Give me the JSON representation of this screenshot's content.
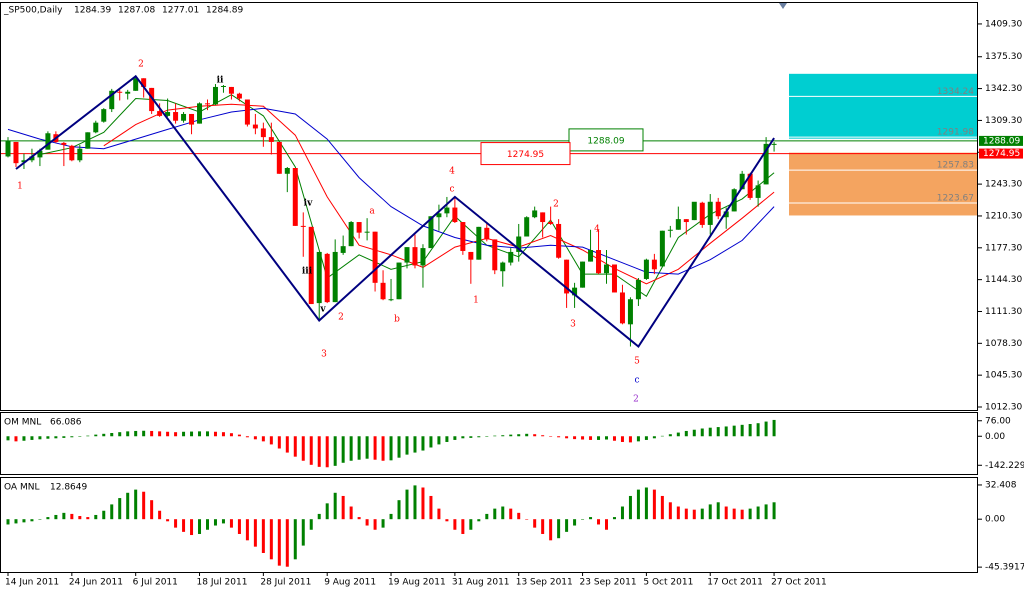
{
  "chart_data": [
    {
      "type": "candlestick",
      "title": "_SP500,Daily",
      "readout": [
        1284.39,
        1287.08,
        1277.01,
        1284.89
      ],
      "categories": [
        "14 Jun 2011",
        null,
        null,
        null,
        null,
        null,
        null,
        null,
        "24 Jun 2011",
        null,
        null,
        null,
        null,
        null,
        null,
        null,
        "6 Jul 2011",
        null,
        null,
        null,
        null,
        null,
        null,
        null,
        "18 Jul 2011",
        null,
        null,
        null,
        null,
        null,
        null,
        null,
        "28 Jul 2011",
        null,
        null,
        null,
        null,
        null,
        null,
        null,
        "9 Aug 2011",
        null,
        null,
        null,
        null,
        null,
        null,
        null,
        "19 Aug 2011",
        null,
        null,
        null,
        null,
        null,
        null,
        null,
        "31 Aug 2011",
        null,
        null,
        null,
        null,
        null,
        null,
        null,
        "13 Sep 2011",
        null,
        null,
        null,
        null,
        null,
        null,
        null,
        "23 Sep 2011",
        null,
        null,
        null,
        null,
        null,
        null,
        null,
        "5 Oct 2011",
        null,
        null,
        null,
        null,
        null,
        null,
        null,
        "17 Oct 2011",
        null,
        null,
        null,
        null,
        null,
        null,
        null,
        "27 Oct 2011"
      ],
      "ohlc": [
        [
          1272,
          1292,
          1271,
          1288
        ],
        [
          1287,
          1287,
          1261,
          1265
        ],
        [
          1266,
          1275,
          1259,
          1268
        ],
        [
          1268,
          1280,
          1266,
          1272
        ],
        [
          1271,
          1280,
          1262,
          1278
        ],
        [
          1279,
          1298,
          1279,
          1296
        ],
        [
          1295,
          1298,
          1286,
          1287
        ],
        [
          1286,
          1287,
          1262,
          1284
        ],
        [
          1283,
          1284,
          1267,
          1268
        ],
        [
          1268,
          1284,
          1266,
          1280
        ],
        [
          1280,
          1297,
          1280,
          1297
        ],
        [
          1297,
          1309,
          1296,
          1307
        ],
        [
          1308,
          1322,
          1307,
          1321
        ],
        [
          1321,
          1342,
          1318,
          1340
        ],
        [
          1339,
          1341,
          1330,
          1338
        ],
        [
          1337,
          1341,
          1331,
          1339
        ],
        [
          1340,
          1356,
          1340,
          1353
        ],
        [
          1353,
          1353,
          1333,
          1344
        ],
        [
          1343,
          1343,
          1316,
          1319
        ],
        [
          1319,
          1327,
          1313,
          1314
        ],
        [
          1314,
          1332,
          1313,
          1318
        ],
        [
          1318,
          1327,
          1306,
          1309
        ],
        [
          1309,
          1318,
          1307,
          1316
        ],
        [
          1316,
          1316,
          1295,
          1305
        ],
        [
          1306,
          1328,
          1306,
          1327
        ],
        [
          1327,
          1331,
          1320,
          1326
        ],
        [
          1326,
          1347,
          1325,
          1344
        ],
        [
          1344,
          1346,
          1338,
          1345
        ],
        [
          1344,
          1344,
          1331,
          1337
        ],
        [
          1337,
          1338,
          1329,
          1332
        ],
        [
          1331,
          1331,
          1303,
          1305
        ],
        [
          1305,
          1316,
          1295,
          1301
        ],
        [
          1301,
          1307,
          1282,
          1292
        ],
        [
          1292,
          1307,
          1274,
          1287
        ],
        [
          1287,
          1287,
          1254,
          1254
        ],
        [
          1254,
          1261,
          1235,
          1260
        ],
        [
          1260,
          1260,
          1200,
          1200
        ],
        [
          1200,
          1214,
          1168,
          1199
        ],
        [
          1199,
          1199,
          1119,
          1119
        ],
        [
          1120,
          1173,
          1101,
          1173
        ],
        [
          1171,
          1172,
          1120,
          1121
        ],
        [
          1121,
          1186,
          1121,
          1173
        ],
        [
          1172,
          1190,
          1170,
          1179
        ],
        [
          1179,
          1205,
          1179,
          1204
        ],
        [
          1204,
          1204,
          1187,
          1193
        ],
        [
          1193,
          1208,
          1185,
          1194
        ],
        [
          1194,
          1194,
          1132,
          1141
        ],
        [
          1141,
          1154,
          1123,
          1124
        ],
        [
          1124,
          1145,
          1122,
          1124
        ],
        [
          1124,
          1162,
          1124,
          1162
        ],
        [
          1162,
          1178,
          1156,
          1178
        ],
        [
          1178,
          1191,
          1156,
          1159
        ],
        [
          1159,
          1181,
          1136,
          1177
        ],
        [
          1177,
          1210,
          1177,
          1210
        ],
        [
          1209,
          1222,
          1195,
          1213
        ],
        [
          1213,
          1230,
          1209,
          1219
        ],
        [
          1219,
          1230,
          1203,
          1204
        ],
        [
          1204,
          1204,
          1170,
          1174
        ],
        [
          1173,
          1173,
          1140,
          1165
        ],
        [
          1165,
          1199,
          1165,
          1199
        ],
        [
          1198,
          1204,
          1184,
          1186
        ],
        [
          1186,
          1186,
          1150,
          1154
        ],
        [
          1153,
          1163,
          1137,
          1162
        ],
        [
          1162,
          1177,
          1159,
          1173
        ],
        [
          1173,
          1202,
          1163,
          1189
        ],
        [
          1189,
          1210,
          1189,
          1209
        ],
        [
          1209,
          1220,
          1208,
          1216
        ],
        [
          1214,
          1214,
          1188,
          1204
        ],
        [
          1204,
          1220,
          1201,
          1202
        ],
        [
          1202,
          1207,
          1166,
          1167
        ],
        [
          1165,
          1165,
          1115,
          1130
        ],
        [
          1128,
          1141,
          1115,
          1136
        ],
        [
          1136,
          1163,
          1136,
          1163
        ],
        [
          1163,
          1196,
          1163,
          1175
        ],
        [
          1175,
          1196,
          1150,
          1151
        ],
        [
          1151,
          1175,
          1140,
          1160
        ],
        [
          1160,
          1160,
          1131,
          1131
        ],
        [
          1131,
          1139,
          1098,
          1099
        ],
        [
          1098,
          1126,
          1075,
          1124
        ],
        [
          1124,
          1146,
          1117,
          1144
        ],
        [
          1145,
          1166,
          1144,
          1165
        ],
        [
          1165,
          1171,
          1150,
          1155
        ],
        [
          1158,
          1195,
          1158,
          1195
        ],
        [
          1195,
          1200,
          1188,
          1196
        ],
        [
          1196,
          1220,
          1196,
          1207
        ],
        [
          1207,
          1207,
          1191,
          1204
        ],
        [
          1206,
          1224,
          1206,
          1225
        ],
        [
          1224,
          1225,
          1198,
          1201
        ],
        [
          1201,
          1233,
          1191,
          1225
        ],
        [
          1225,
          1229,
          1207,
          1210
        ],
        [
          1209,
          1219,
          1197,
          1215
        ],
        [
          1215,
          1239,
          1215,
          1238
        ],
        [
          1238,
          1257,
          1238,
          1254
        ],
        [
          1254,
          1255,
          1227,
          1229
        ],
        [
          1229,
          1247,
          1220,
          1242
        ],
        [
          1243,
          1292,
          1243,
          1285
        ],
        [
          1284,
          1287,
          1277,
          1285
        ]
      ],
      "colors": {
        "up": "#008000",
        "down": "#ff0000"
      },
      "ylim": [
        1009.2,
        1431
      ],
      "yticks": [
        {
          "value": 1409.3,
          "label": "1409.30"
        },
        {
          "value": 1375.3,
          "label": "1375.30"
        },
        {
          "value": 1342.3,
          "label": "1342.30"
        },
        {
          "value": 1309.3,
          "label": "1309.30"
        },
        {
          "value": 1276.3,
          "label": "1276.30"
        },
        {
          "value": 1243.3,
          "label": "1243.30"
        },
        {
          "value": 1210.3,
          "label": "1210.30"
        },
        {
          "value": 1177.3,
          "label": "1177.30"
        },
        {
          "value": 1144.3,
          "label": "1144.30"
        },
        {
          "value": 1111.3,
          "label": "1111.30"
        },
        {
          "value": 1078.3,
          "label": "1078.30"
        },
        {
          "value": 1045.3,
          "label": "1045.30"
        },
        {
          "value": 1012.3,
          "label": "1012.30"
        }
      ],
      "moving_averages": [
        {
          "color": "#008000",
          "x": [
            4,
            8,
            12,
            16,
            20,
            24,
            28,
            32,
            36,
            40,
            44,
            48,
            52,
            56,
            60,
            64,
            68,
            72,
            76,
            80,
            84,
            88,
            92,
            96
          ],
          "values": [
            1274,
            1281,
            1297,
            1332,
            1330,
            1318,
            1336,
            1314,
            1261,
            1146,
            1170,
            1155,
            1163,
            1210,
            1180,
            1168,
            1206,
            1150,
            1150,
            1127,
            1188,
            1212,
            1228,
            1255
          ]
        },
        {
          "color": "#ff0000",
          "x": [
            12,
            16,
            20,
            24,
            28,
            32,
            36,
            40,
            44,
            48,
            52,
            56,
            60,
            64,
            68,
            72,
            76,
            80,
            84,
            88,
            92,
            96
          ],
          "values": [
            1283,
            1305,
            1320,
            1324,
            1326,
            1324,
            1294,
            1230,
            1180,
            1170,
            1157,
            1178,
            1187,
            1178,
            1190,
            1175,
            1156,
            1140,
            1155,
            1182,
            1208,
            1235
          ]
        },
        {
          "color": "#0000cd",
          "x": [
            0,
            4,
            8,
            12,
            16,
            20,
            24,
            28,
            32,
            36,
            40,
            44,
            48,
            52,
            56,
            60,
            64,
            68,
            72,
            76,
            80,
            84,
            88,
            92,
            96
          ],
          "values": [
            1300,
            1290,
            1282,
            1280,
            1290,
            1300,
            1310,
            1318,
            1322,
            1316,
            1290,
            1250,
            1220,
            1200,
            1188,
            1180,
            1177,
            1180,
            1178,
            1165,
            1152,
            1150,
            1165,
            1185,
            1220
          ]
        }
      ],
      "wave_line": {
        "color": "#000080",
        "x": [
          1,
          16,
          39,
          56,
          79,
          96
        ],
        "values": [
          1259,
          1355,
          1102,
          1230,
          1075,
          1291
        ]
      },
      "levels": [
        {
          "value": 1288.09,
          "color": "#008000"
        },
        {
          "value": 1274.95,
          "color": "#ff0000"
        }
      ],
      "zones": [
        {
          "color": "#00ced1",
          "top": 1357.6,
          "bottom": 1290.4,
          "levels": [
            1334.24,
            1291.98
          ]
        },
        {
          "color": "#f4a460",
          "top": 1275.9,
          "bottom": 1210.8,
          "levels": [
            1257.83,
            1223.67
          ]
        }
      ],
      "annotations": [
        {
          "text": "1",
          "color": "#ff0000"
        },
        {
          "text": "2",
          "color": "#ff0000"
        },
        {
          "text": "ii",
          "color": "#000000"
        },
        {
          "text": "iv",
          "color": "#000000"
        },
        {
          "text": "iii",
          "color": "#000000"
        },
        {
          "text": "v",
          "color": "#000000"
        },
        {
          "text": "2",
          "color": "#ff0000"
        },
        {
          "text": "3",
          "color": "#ff0000"
        },
        {
          "text": "a",
          "color": "#ff0000"
        },
        {
          "text": "b",
          "color": "#ff0000"
        },
        {
          "text": "4",
          "color": "#ff0000"
        },
        {
          "text": "c",
          "color": "#ff0000"
        },
        {
          "text": "2",
          "color": "#ff0000"
        },
        {
          "text": "4",
          "color": "#ff0000"
        },
        {
          "text": "1",
          "color": "#ff0000"
        },
        {
          "text": "3",
          "color": "#ff0000"
        },
        {
          "text": "5",
          "color": "#ff0000"
        },
        {
          "text": "c",
          "color": "#0000cd"
        },
        {
          "text": "2",
          "color": "#9932cc"
        }
      ]
    },
    {
      "type": "histogram",
      "title": "OM MNL",
      "readout": 66.086,
      "colors": {
        "up": "#008000",
        "down": "#ff0000"
      },
      "ylim": [
        -185,
        114
      ],
      "yticks": [
        {
          "value": 76,
          "label": "76.00"
        },
        {
          "value": 0,
          "label": "0.00"
        },
        -142.229
      ],
      "values": [
        -20,
        -25,
        -22,
        -18,
        -15,
        -12,
        -10,
        -8,
        -5,
        -2,
        3,
        8,
        12,
        16,
        20,
        24,
        26,
        27,
        26,
        24,
        22,
        20,
        22,
        23,
        24,
        24,
        22,
        20,
        15,
        8,
        -5,
        -15,
        -25,
        -40,
        -60,
        -80,
        -100,
        -120,
        -140,
        -150,
        -152,
        -145,
        -130,
        -120,
        -115,
        -110,
        -115,
        -120,
        -118,
        -105,
        -90,
        -80,
        -70,
        -55,
        -40,
        -28,
        -18,
        -10,
        -8,
        -5,
        0,
        3,
        5,
        8,
        10,
        12,
        10,
        5,
        0,
        -5,
        -10,
        -14,
        -16,
        -18,
        -18,
        -16,
        -22,
        -28,
        -30,
        -25,
        -18,
        -10,
        2,
        10,
        18,
        26,
        32,
        38,
        42,
        45,
        48,
        52,
        56,
        60,
        64,
        72,
        80
      ]
    },
    {
      "type": "histogram",
      "title": "OA MNL",
      "readout": 12.8649,
      "colors": {
        "up": "#008000",
        "down": "#ff0000"
      },
      "ylim": [
        -50,
        39
      ],
      "yticks": [
        32.408,
        {
          "value": 0,
          "label": "0.00"
        },
        -45.3917
      ],
      "values": [
        -5,
        -4,
        -3,
        -2,
        0,
        2,
        4,
        6,
        5,
        3,
        2,
        4,
        8,
        14,
        20,
        25,
        28,
        26,
        18,
        8,
        -2,
        -8,
        -12,
        -15,
        -14,
        -10,
        -6,
        -4,
        -8,
        -14,
        -20,
        -26,
        -32,
        -38,
        -44,
        -45,
        -38,
        -25,
        -10,
        5,
        15,
        25,
        22,
        12,
        2,
        -6,
        -10,
        -8,
        5,
        18,
        28,
        32,
        30,
        22,
        10,
        -2,
        -10,
        -14,
        -10,
        -2,
        5,
        10,
        12,
        10,
        6,
        0,
        -8,
        -14,
        -20,
        -18,
        -12,
        -6,
        0,
        2,
        -5,
        -10,
        2,
        12,
        22,
        28,
        30,
        28,
        22,
        16,
        12,
        10,
        9,
        10,
        14,
        16,
        12,
        10,
        9,
        10,
        12,
        14,
        16
      ]
    }
  ]
}
